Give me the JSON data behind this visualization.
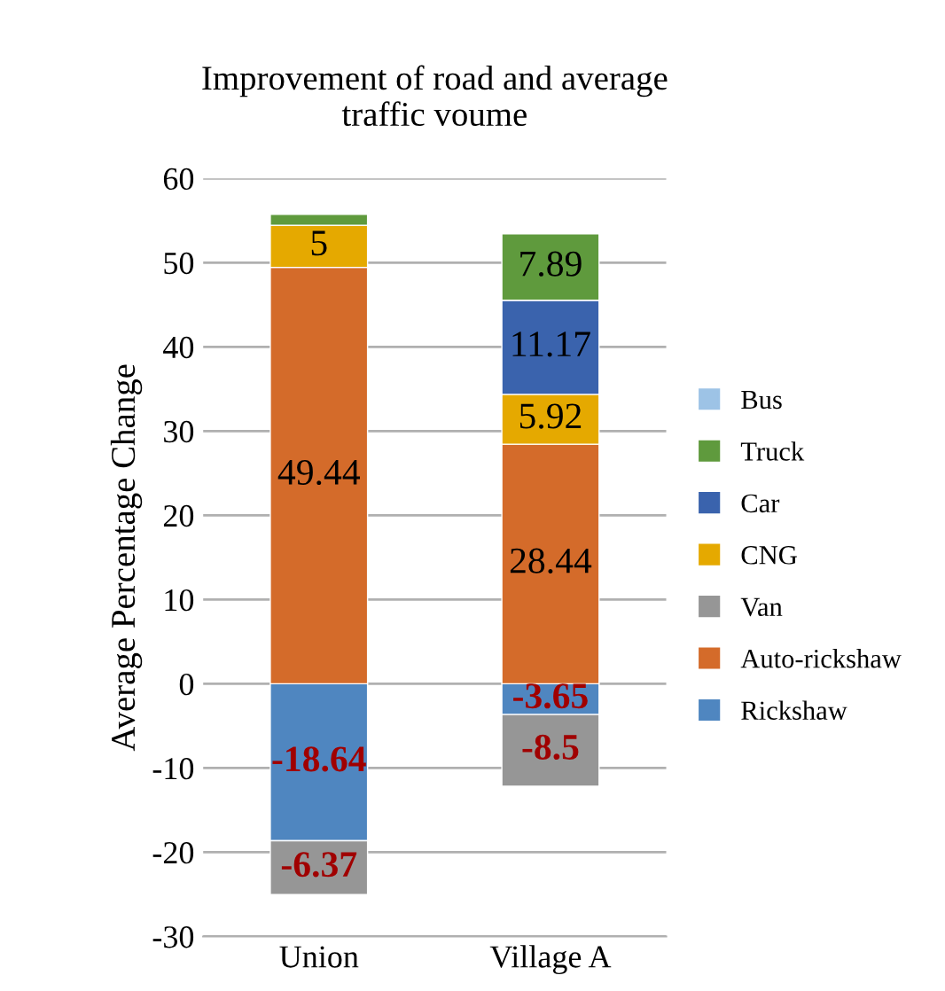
{
  "chart_data": {
    "type": "bar",
    "stacked": true,
    "title": "Improvement of road and average\ntraffic voume",
    "ylabel": "Average Percentage Change",
    "categories": [
      "Union",
      "Village A"
    ],
    "series": [
      {
        "name": "Rickshaw",
        "color": "#4f86c0",
        "values": [
          -18.64,
          -3.65
        ],
        "value_labels": [
          "-18.64",
          "-3.65"
        ]
      },
      {
        "name": "Auto-rickshaw",
        "color": "#d46b2a",
        "values": [
          49.44,
          28.44
        ],
        "value_labels": [
          "49.44",
          "28.44"
        ]
      },
      {
        "name": "Van",
        "color": "#969696",
        "values": [
          -6.37,
          -8.5
        ],
        "value_labels": [
          "-6.37",
          "-8.5"
        ]
      },
      {
        "name": "CNG",
        "color": "#e5a900",
        "values": [
          5,
          5.92
        ],
        "value_labels": [
          "5",
          "5.92"
        ]
      },
      {
        "name": "Car",
        "color": "#3a63ad",
        "values": [
          null,
          11.17
        ],
        "value_labels": [
          null,
          "11.17"
        ]
      },
      {
        "name": "Truck",
        "color": "#5f9a3d",
        "values": [
          1.3,
          7.89
        ],
        "value_labels": [
          null,
          "7.89"
        ]
      },
      {
        "name": "Bus",
        "color": "#9dc3e6",
        "values": [
          null,
          null
        ],
        "value_labels": [
          null,
          null
        ]
      }
    ],
    "ylim": [
      -30,
      60
    ],
    "yticks": [
      -30,
      -20,
      -10,
      0,
      10,
      20,
      30,
      40,
      50,
      60
    ],
    "grid": "y",
    "legend": "right"
  }
}
